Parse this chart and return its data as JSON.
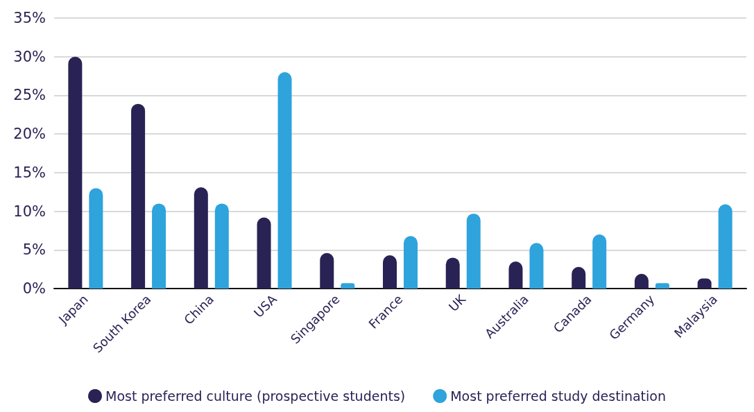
{
  "chart_data": {
    "type": "bar",
    "categories": [
      "Japan",
      "South Korea",
      "China",
      "USA",
      "Singapore",
      "France",
      "UK",
      "Australia",
      "Canada",
      "Germany",
      "Malaysia"
    ],
    "series": [
      {
        "name": "Most preferred culture (prospective students)",
        "color": "#292254",
        "values": [
          30,
          23.9,
          13.1,
          9.2,
          4.6,
          4.3,
          4.0,
          3.5,
          2.8,
          1.9,
          1.3
        ]
      },
      {
        "name": "Most preferred study destination",
        "color": "#2ea3dc",
        "values": [
          13,
          11,
          11,
          28,
          0.7,
          6.8,
          9.7,
          5.9,
          7,
          0.7,
          10.9
        ]
      }
    ],
    "ylim": [
      0,
      35
    ],
    "yticks": [
      {
        "value": 0,
        "label": "0%"
      },
      {
        "value": 5,
        "label": "5%"
      },
      {
        "value": 10,
        "label": "10%"
      },
      {
        "value": 15,
        "label": "15%"
      },
      {
        "value": 20,
        "label": "20%"
      },
      {
        "value": 25,
        "label": "25%"
      },
      {
        "value": 30,
        "label": "30%"
      },
      {
        "value": 35,
        "label": "35%"
      }
    ],
    "grid": "y",
    "legend": "bottom"
  }
}
